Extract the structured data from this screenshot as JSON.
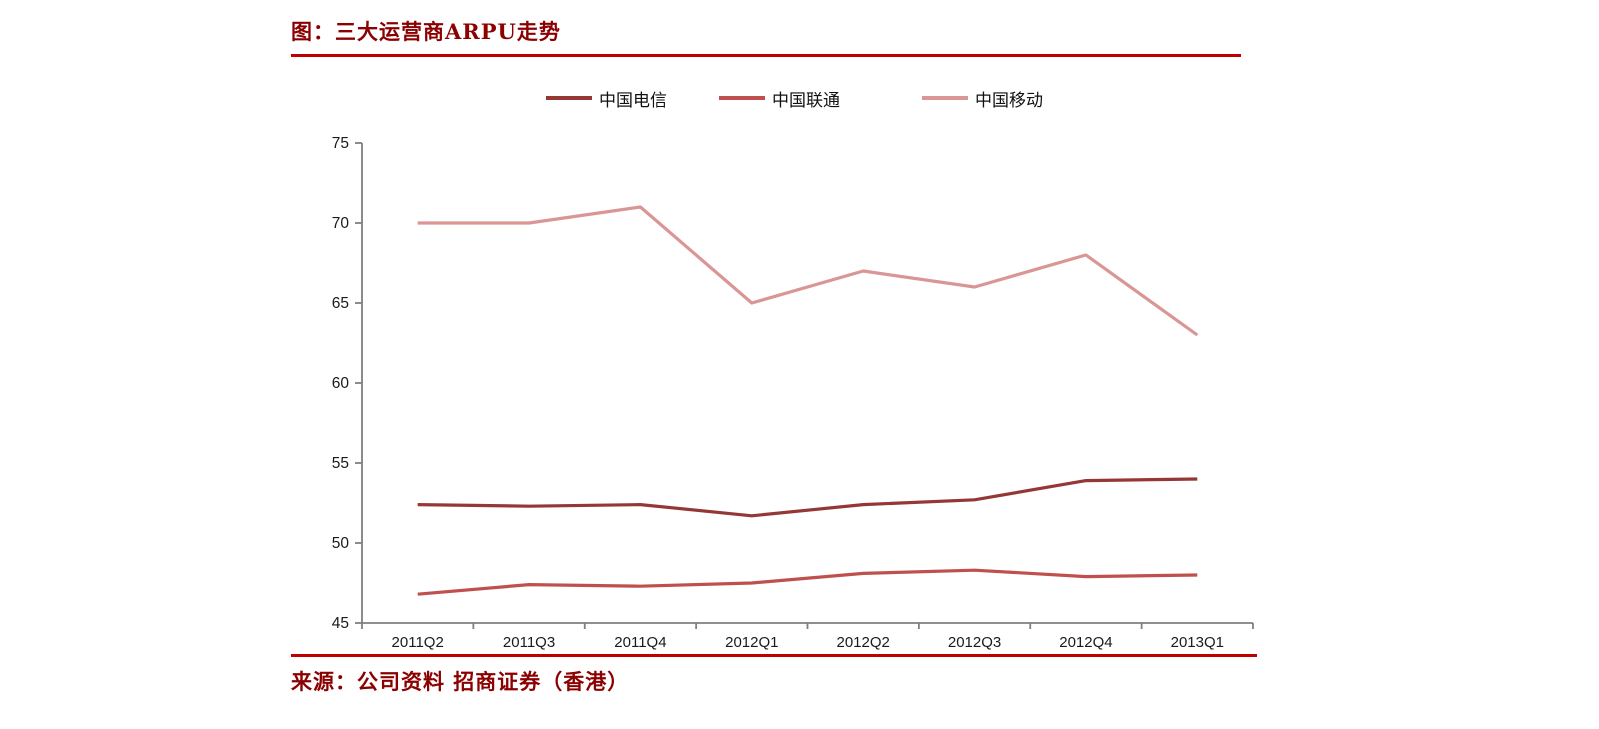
{
  "figure": {
    "title": "图：三大运营商ARPU走势",
    "source": "来源：公司资料 招商证券（香港）"
  },
  "colors": {
    "heading_text": "#8B0000",
    "rule_red": "#C00000",
    "axis_gray": "#7f7f7f",
    "telecom_line": "#953735",
    "unicom_line": "#C0504D",
    "mobile_line": "#D99694"
  },
  "chart_data": {
    "type": "line",
    "title": "三大运营商ARPU走势",
    "categories": [
      "2011Q2",
      "2011Q3",
      "2011Q4",
      "2012Q1",
      "2012Q2",
      "2012Q3",
      "2012Q4",
      "2013Q1"
    ],
    "series": [
      {
        "name": "中国电信",
        "color": "#953735",
        "values": [
          52.4,
          52.3,
          52.4,
          51.7,
          52.4,
          52.7,
          53.9,
          54.0
        ]
      },
      {
        "name": "中国联通",
        "color": "#C0504D",
        "values": [
          46.8,
          47.4,
          47.3,
          47.5,
          48.1,
          48.3,
          47.9,
          48.0
        ]
      },
      {
        "name": "中国移动",
        "color": "#D99694",
        "values": [
          70,
          70,
          71,
          65,
          67,
          66,
          68,
          63
        ]
      }
    ],
    "xlabel": "",
    "ylabel": "",
    "ylim": [
      45,
      75
    ],
    "ytick_step": 5,
    "yticks": [
      45,
      50,
      55,
      60,
      65,
      70,
      75
    ],
    "grid": false,
    "legend_position": "top",
    "markers": false
  }
}
